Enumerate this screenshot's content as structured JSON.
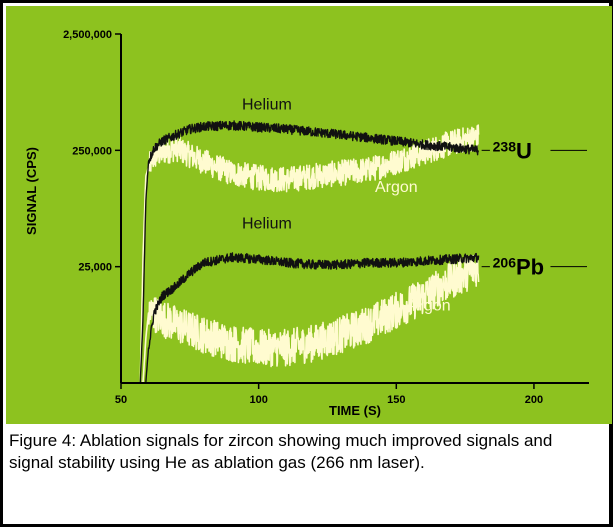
{
  "chart_data": {
    "type": "line",
    "xlabel": "TIME (S)",
    "ylabel": "SIGNAL (CPS)",
    "xlim": [
      50,
      220
    ],
    "x_ticks": [
      50,
      100,
      150,
      200
    ],
    "y_scale": "log",
    "ylim": [
      2500,
      2500000
    ],
    "y_ticks": [
      {
        "value": 25000,
        "label": "25,000"
      },
      {
        "value": 250000,
        "label": "250,000"
      },
      {
        "value": 2500000,
        "label": "2,500,000"
      }
    ],
    "grid": false,
    "colors": {
      "background": "#8dc21f",
      "helium": "#111111",
      "argon": "#fffbd0",
      "axis": "#000000"
    },
    "series": [
      {
        "name": "Helium",
        "isotope": "238U",
        "x": [
          57,
          58,
          59,
          60,
          62,
          65,
          70,
          75,
          80,
          90,
          100,
          110,
          120,
          130,
          140,
          150,
          160,
          170,
          180
        ],
        "y": [
          2500,
          9000,
          90000,
          200000,
          260000,
          300000,
          340000,
          380000,
          400000,
          410000,
          395000,
          380000,
          360000,
          340000,
          320000,
          300000,
          280000,
          265000,
          250000
        ]
      },
      {
        "name": "Argon",
        "isotope": "238U",
        "x": [
          57,
          58,
          59,
          60,
          62,
          65,
          70,
          80,
          90,
          100,
          110,
          120,
          130,
          140,
          150,
          160,
          170,
          180
        ],
        "y": [
          2500,
          30000,
          150000,
          180000,
          220000,
          240000,
          260000,
          200000,
          160000,
          145000,
          140000,
          150000,
          160000,
          170000,
          200000,
          240000,
          290000,
          330000
        ]
      },
      {
        "name": "Helium",
        "isotope": "206Pb",
        "x": [
          57,
          58,
          59,
          60,
          62,
          65,
          70,
          75,
          80,
          90,
          100,
          110,
          120,
          130,
          140,
          150,
          160,
          170,
          180
        ],
        "y": [
          2500,
          2500,
          2500,
          5000,
          10000,
          14000,
          17000,
          22000,
          27000,
          30000,
          29000,
          27000,
          26000,
          26000,
          27000,
          27000,
          28000,
          29000,
          30000
        ]
      },
      {
        "name": "Argon",
        "isotope": "206Pb",
        "x": [
          57,
          58,
          59,
          60,
          62,
          65,
          70,
          80,
          90,
          100,
          110,
          120,
          130,
          140,
          150,
          160,
          170,
          180
        ],
        "y": [
          2500,
          2500,
          6000,
          10000,
          10000,
          9000,
          8000,
          6500,
          5500,
          5000,
          5000,
          5500,
          6500,
          8000,
          10500,
          14000,
          19000,
          25000
        ]
      }
    ],
    "annotations": [
      {
        "text": "Helium",
        "x": 103,
        "y": 560000,
        "color": "#111111"
      },
      {
        "text": "Argon",
        "x": 150,
        "y": 110000,
        "color": "#fffbd0"
      },
      {
        "text": "Helium",
        "x": 103,
        "y": 53000,
        "color": "#111111"
      },
      {
        "text": "Argon",
        "x": 162,
        "y": 10500,
        "color": "#fffbd0"
      }
    ],
    "isotope_labels": [
      {
        "mass": "238",
        "element": "U",
        "y": 250000
      },
      {
        "mass": "206",
        "element": "Pb",
        "y": 25000
      }
    ]
  },
  "caption": "Figure 4: Ablation signals for zircon showing much improved signals and signal stability using He as ablation gas (266 nm laser)."
}
